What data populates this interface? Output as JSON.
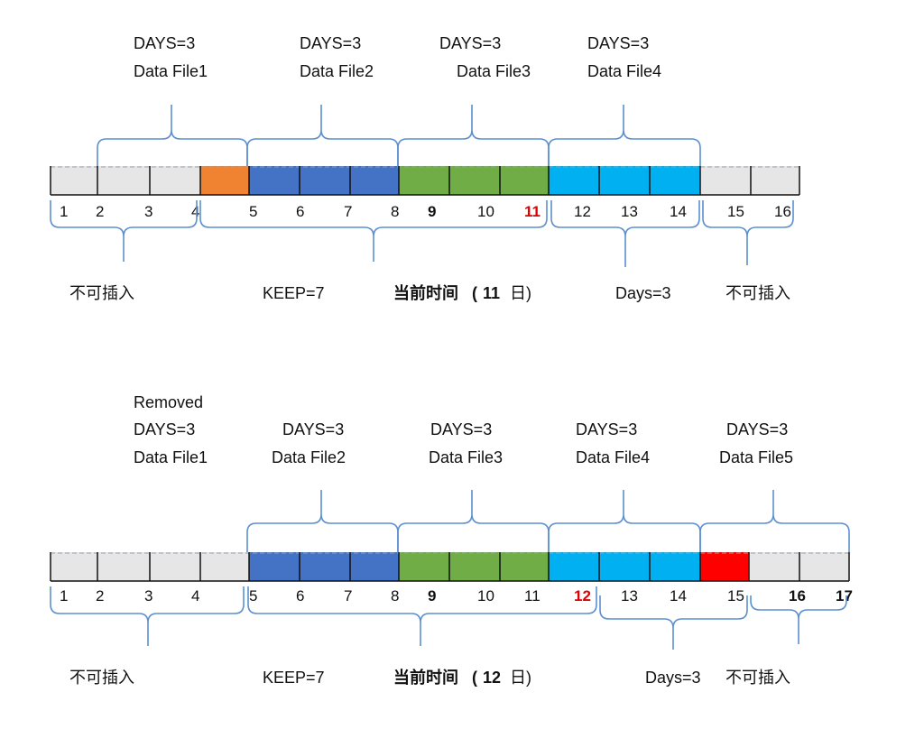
{
  "colors": {
    "gray": "#e6e6e6",
    "orange": "#ef8332",
    "blue": "#4472c4",
    "green": "#70ad47",
    "cyan": "#00b0f0",
    "red": "#ff0000",
    "brace": "#5b8fd0",
    "emphasis": "#e00000"
  },
  "top": {
    "files": [
      {
        "days": "DAYS=3",
        "name": "Data File1"
      },
      {
        "days": "DAYS=3",
        "name": "Data File2"
      },
      {
        "days": "DAYS=3",
        "name": "Data File3"
      },
      {
        "days": "DAYS=3",
        "name": "Data File4"
      }
    ],
    "cells": [
      "gray",
      "gray",
      "gray",
      "orange",
      "blue",
      "blue",
      "blue",
      "green",
      "green",
      "green",
      "cyan",
      "cyan",
      "cyan",
      "gray",
      "gray"
    ],
    "ticks": [
      "1",
      "2",
      "3",
      "4",
      "5",
      "6",
      "7",
      "8",
      "9",
      "10",
      "11",
      "12",
      "13",
      "14",
      "15",
      "16"
    ],
    "bottom_labels": {
      "left": "不可插入",
      "keep": "KEEP=7",
      "now": "当前时间",
      "now_day_open": "(",
      "now_day": "11",
      "now_day_close": "日)",
      "days": "Days=3",
      "right": "不可插入"
    }
  },
  "bottom": {
    "removed": "Removed",
    "files": [
      {
        "days": "DAYS=3",
        "name": "Data File1"
      },
      {
        "days": "DAYS=3",
        "name": "Data File2"
      },
      {
        "days": "DAYS=3",
        "name": "Data File3"
      },
      {
        "days": "DAYS=3",
        "name": "Data File4"
      },
      {
        "days": "DAYS=3",
        "name": "Data File5"
      }
    ],
    "cells": [
      "gray",
      "gray",
      "gray",
      "gray",
      "blue",
      "blue",
      "blue",
      "green",
      "green",
      "green",
      "cyan",
      "cyan",
      "cyan",
      "red",
      "gray",
      "gray"
    ],
    "ticks": [
      "1",
      "2",
      "3",
      "4",
      "5",
      "6",
      "7",
      "8",
      "9",
      "10",
      "11",
      "12",
      "13",
      "14",
      "15",
      "16",
      "17"
    ],
    "bottom_labels": {
      "left": "不可插入",
      "keep": "KEEP=7",
      "now": "当前时间",
      "now_day_open": "(",
      "now_day": "12",
      "now_day_close": "日)",
      "days": "Days=3",
      "right": "不可插入"
    }
  }
}
